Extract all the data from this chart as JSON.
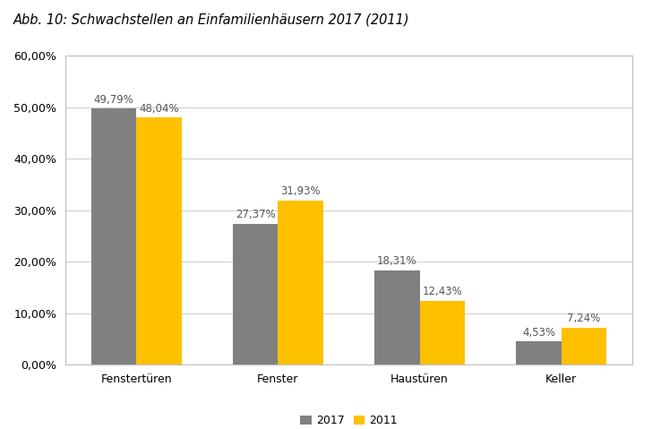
{
  "title": "Abb. 10: Schwachstellen an Einfamilienhäusern 2017 (2011)",
  "categories": [
    "Fenstertüren",
    "Fenster",
    "Haustüren",
    "Keller"
  ],
  "values_2017": [
    49.79,
    27.37,
    18.31,
    4.53
  ],
  "values_2011": [
    48.04,
    31.93,
    12.43,
    7.24
  ],
  "labels_2017": [
    "49,79%",
    "27,37%",
    "18,31%",
    "4,53%"
  ],
  "labels_2011": [
    "48,04%",
    "31,93%",
    "12,43%",
    "7,24%"
  ],
  "color_2017": "#808080",
  "color_2011": "#FFC000",
  "ylim": [
    0,
    60
  ],
  "yticks": [
    0,
    10,
    20,
    30,
    40,
    50,
    60
  ],
  "ytick_labels": [
    "0,00%",
    "10,00%",
    "20,00%",
    "30,00%",
    "40,00%",
    "50,00%",
    "60,00%"
  ],
  "legend_labels": [
    "2017",
    "2011"
  ],
  "bar_width": 0.32,
  "background_color": "#ffffff",
  "plot_background_color": "#ffffff",
  "grid_color": "#d0d0d0",
  "border_color": "#c0c0c0",
  "title_fontsize": 10.5,
  "label_fontsize": 8.5,
  "tick_fontsize": 9,
  "legend_fontsize": 9
}
